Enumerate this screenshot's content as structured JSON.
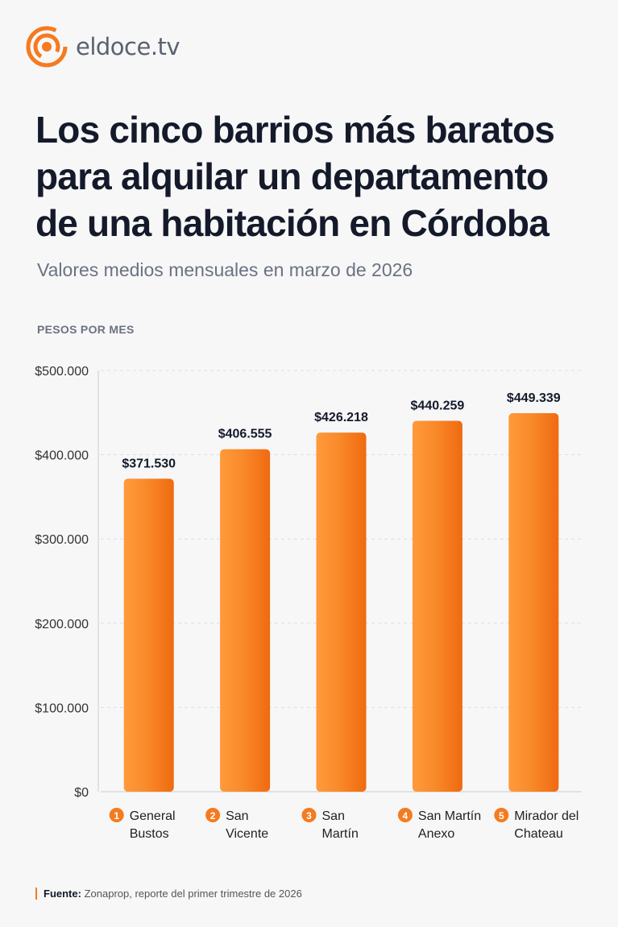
{
  "brand": {
    "name": "eldoce.tv",
    "color": "#f47b20"
  },
  "title": "Los cinco barrios más baratos para alquilar un departamento de una habitación en Córdoba",
  "subtitle": "Valores medios mensuales en marzo de 2026",
  "source": {
    "label": "Fuente:",
    "text": "Zonaprop, reporte del primer trimestre de 2026"
  },
  "chart_data": {
    "type": "bar",
    "ylabel": "PESOS POR MES",
    "ylim": [
      0,
      500000
    ],
    "yticks": [
      0,
      100000,
      200000,
      300000,
      400000,
      500000
    ],
    "ytick_labels": [
      "$0",
      "$100.000",
      "$200.000",
      "$300.000",
      "$400.000",
      "$500.000"
    ],
    "grid": true,
    "categories": [
      {
        "rank": "1",
        "lines": [
          "General",
          "Bustos"
        ]
      },
      {
        "rank": "2",
        "lines": [
          "San",
          "Vicente"
        ]
      },
      {
        "rank": "3",
        "lines": [
          "San",
          "Martín"
        ]
      },
      {
        "rank": "4",
        "lines": [
          "San Martín",
          "Anexo"
        ]
      },
      {
        "rank": "5",
        "lines": [
          "Mirador del",
          "Chateau"
        ]
      }
    ],
    "values": [
      371530,
      406555,
      426218,
      440259,
      449339
    ],
    "value_labels": [
      "$371.530",
      "$406.555",
      "$426.218",
      "$440.259",
      "$449.339"
    ],
    "bar_color": "#f7801f"
  }
}
